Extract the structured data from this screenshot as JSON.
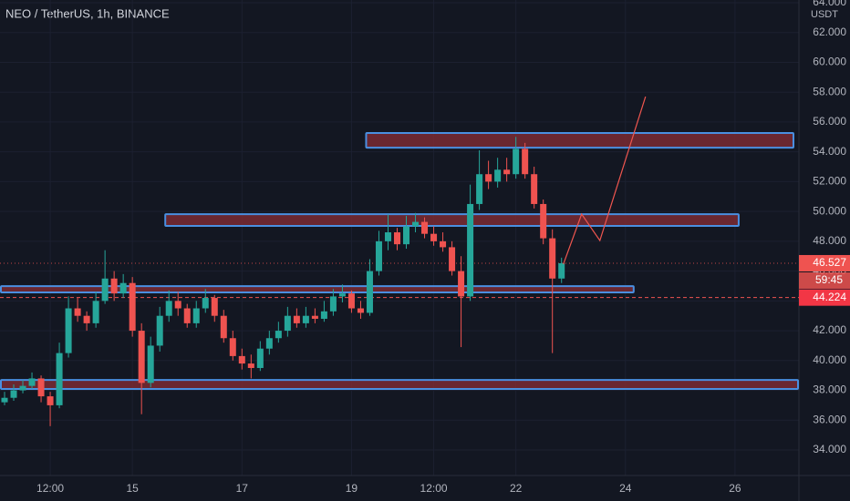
{
  "chart_data": {
    "type": "candlestick",
    "title": "NEO / TetherUS, 1h, BINANCE",
    "currency": "USDT",
    "x": [
      16,
      20,
      24,
      28,
      32,
      36,
      40,
      44,
      48,
      52,
      56,
      60,
      64,
      68,
      72,
      76,
      80,
      84,
      88,
      92,
      96,
      100,
      104,
      108,
      112,
      116,
      120,
      124,
      128,
      132,
      136,
      140,
      144,
      148,
      152,
      156,
      160,
      164,
      168,
      172,
      176,
      180,
      184,
      188,
      192,
      196,
      200,
      204,
      208,
      212,
      216,
      220,
      224,
      228,
      232,
      236,
      240,
      244,
      248,
      252,
      256,
      260
    ],
    "open": [
      37.2,
      37.5,
      38.0,
      38.3,
      38.8,
      37.6,
      37.0,
      40.5,
      43.5,
      43.0,
      42.5,
      44.0,
      45.5,
      44.5,
      45.2,
      42.0,
      38.5,
      41.0,
      43.0,
      44.0,
      43.5,
      42.5,
      43.5,
      44.2,
      43.0,
      41.5,
      40.3,
      39.8,
      39.5,
      40.8,
      41.5,
      42.0,
      43.0,
      42.5,
      43.0,
      42.8,
      43.3,
      44.3,
      44.5,
      43.5,
      43.2,
      46.0,
      48.0,
      48.6,
      47.8,
      49.0,
      49.3,
      48.5,
      48.0,
      47.6,
      46.0,
      44.3,
      50.5,
      52.5,
      52.0,
      52.8,
      52.5,
      54.2,
      52.5,
      50.5,
      48.2,
      45.5
    ],
    "high": [
      37.9,
      38.4,
      38.7,
      39.2,
      39.0,
      37.9,
      41.2,
      44.3,
      44.2,
      43.3,
      44.6,
      47.4,
      46.0,
      45.8,
      45.6,
      42.5,
      41.6,
      43.6,
      44.7,
      44.6,
      43.8,
      44.0,
      44.8,
      44.4,
      43.4,
      42.0,
      40.8,
      40.4,
      41.3,
      42.0,
      42.6,
      43.6,
      43.5,
      43.6,
      43.5,
      44.0,
      44.8,
      45.1,
      44.7,
      44.0,
      46.8,
      48.7,
      49.8,
      48.9,
      49.7,
      49.9,
      49.6,
      49.0,
      48.6,
      48.0,
      47.0,
      51.8,
      54.1,
      53.4,
      53.6,
      53.6,
      55.0,
      54.6,
      53.0,
      50.8,
      48.8,
      46.9
    ],
    "low": [
      37.0,
      37.3,
      37.8,
      38.1,
      37.2,
      35.6,
      36.8,
      40.2,
      42.6,
      42.0,
      42.2,
      43.8,
      44.0,
      44.2,
      41.6,
      36.4,
      38.2,
      40.6,
      42.6,
      43.0,
      42.2,
      42.2,
      43.2,
      42.6,
      41.2,
      40.0,
      39.4,
      38.8,
      39.3,
      40.4,
      41.2,
      41.6,
      42.2,
      42.2,
      42.5,
      42.6,
      43.0,
      43.9,
      43.2,
      42.8,
      43.0,
      45.7,
      47.4,
      47.4,
      47.5,
      48.6,
      48.2,
      47.7,
      47.3,
      45.7,
      40.9,
      44.0,
      50.1,
      51.5,
      51.6,
      52.0,
      52.2,
      52.2,
      50.2,
      47.8,
      40.5,
      45.2
    ],
    "close": [
      37.5,
      38.0,
      38.3,
      38.8,
      37.6,
      37.0,
      40.5,
      43.5,
      43.0,
      42.5,
      44.0,
      45.5,
      44.5,
      45.2,
      42.0,
      38.5,
      41.0,
      43.0,
      44.0,
      43.5,
      42.5,
      43.5,
      44.2,
      43.0,
      41.5,
      40.3,
      39.8,
      39.5,
      40.8,
      41.5,
      42.0,
      43.0,
      42.5,
      43.0,
      42.8,
      43.3,
      44.3,
      44.5,
      43.5,
      43.2,
      46.0,
      48.0,
      48.6,
      47.8,
      49.0,
      49.3,
      48.5,
      48.0,
      47.6,
      46.0,
      44.3,
      50.5,
      52.5,
      52.0,
      52.8,
      52.5,
      54.2,
      52.5,
      50.5,
      48.2,
      45.5,
      46.527
    ],
    "up_color": "#26a69a",
    "down_color": "#ef5350",
    "xlim": [
      14,
      364
    ],
    "xticks": [
      {
        "value": 36,
        "label": "12:00"
      },
      {
        "value": 72,
        "label": "15"
      },
      {
        "value": 120,
        "label": "17"
      },
      {
        "value": 168,
        "label": "19"
      },
      {
        "value": 204,
        "label": "12:00"
      },
      {
        "value": 240,
        "label": "22"
      },
      {
        "value": 288,
        "label": "24"
      },
      {
        "value": 336,
        "label": "26"
      }
    ],
    "ylim": [
      34,
      64
    ],
    "yticks": [
      {
        "value": 34,
        "label": "34.000"
      },
      {
        "value": 36,
        "label": "36.000"
      },
      {
        "value": 38,
        "label": "38.000"
      },
      {
        "value": 40,
        "label": "40.000"
      },
      {
        "value": 42,
        "label": "42.000"
      },
      {
        "value": 44,
        "label": "44.000"
      },
      {
        "value": 46,
        "label": "46.000"
      },
      {
        "value": 48,
        "label": "48.000"
      },
      {
        "value": 50,
        "label": "50.000"
      },
      {
        "value": 52,
        "label": "52.000"
      },
      {
        "value": 54,
        "label": "54.000"
      },
      {
        "value": 56,
        "label": "56.000"
      },
      {
        "value": 58,
        "label": "58.000"
      },
      {
        "value": 60,
        "label": "60.000"
      },
      {
        "value": 62,
        "label": "62.000"
      },
      {
        "value": 64,
        "label": "64.000"
      }
    ],
    "last_price": 46.527,
    "countdown": "59:45",
    "reference_price": 44.224,
    "zones": [
      {
        "x": [
          174,
          362
        ],
        "low": 54.28,
        "high": 55.26
      },
      {
        "x": [
          86,
          338
        ],
        "low": 49.03,
        "high": 49.82
      },
      {
        "x": [
          14,
          292
        ],
        "low": 44.57,
        "high": 44.99
      },
      {
        "x": [
          14,
          364
        ],
        "low": 38.09,
        "high": 38.7
      }
    ],
    "zone_fill": "#7a2a33",
    "zone_border": "#4a8fe0",
    "projection": {
      "x": [
        260.8,
        268.8,
        276.8,
        296.8
      ],
      "y": [
        46.46,
        49.82,
        48.05,
        57.7
      ],
      "color": "#f0564f"
    }
  }
}
